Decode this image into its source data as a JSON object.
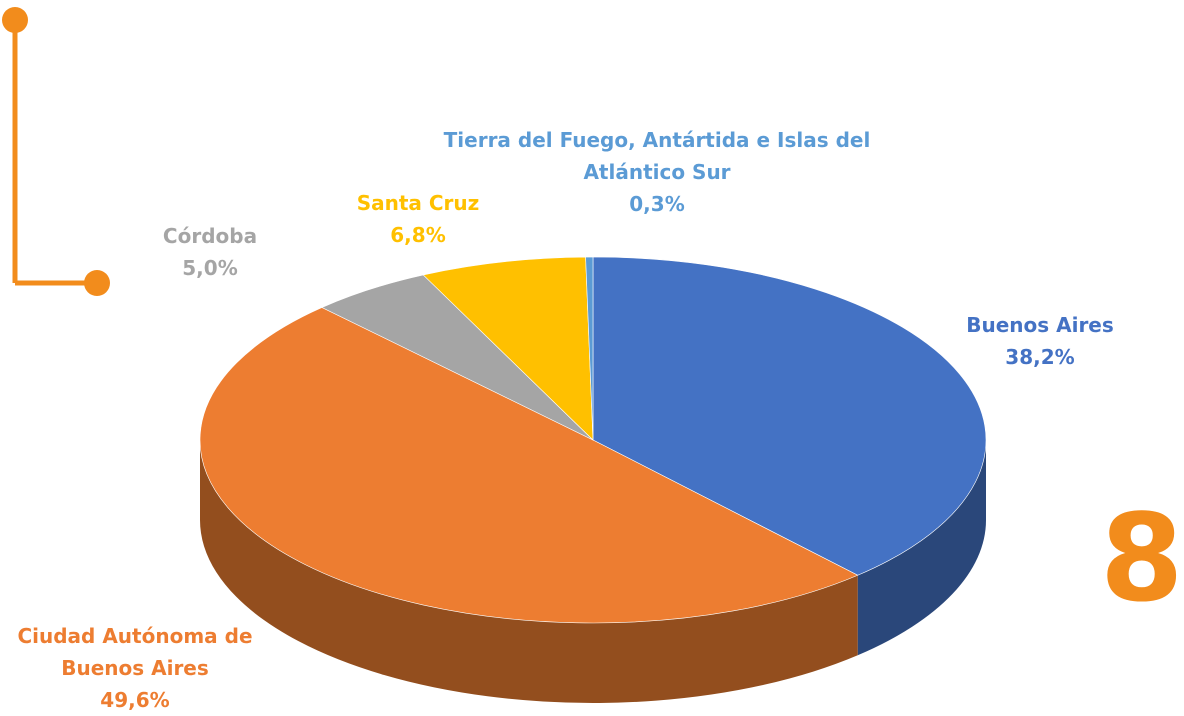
{
  "page_number": "8",
  "chart_data": {
    "type": "pie3d",
    "categories": [
      "Buenos Aires",
      "Ciudad Autónoma de Buenos Aires",
      "Córdoba",
      "Santa Cruz",
      "Tierra del Fuego, Antártida e Islas del Atlántico Sur"
    ],
    "values": [
      38.2,
      49.6,
      5.0,
      6.8,
      0.3
    ],
    "value_labels": [
      "38,2%",
      "49,6%",
      "5,0%",
      "6,8%",
      "0,3%"
    ],
    "colors": [
      "#4472c4",
      "#ed7d31",
      "#a5a5a5",
      "#ffc000",
      "#5b9bd5"
    ]
  }
}
